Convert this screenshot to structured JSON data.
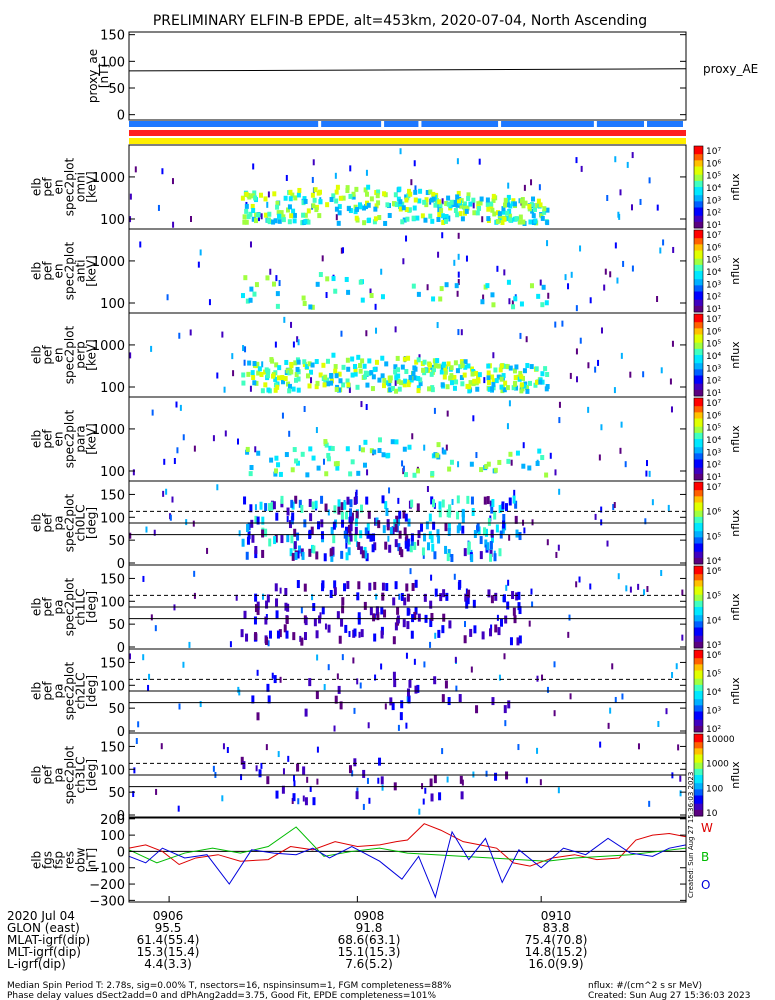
{
  "title": "PRELIMINARY ELFIN-B EPDE, alt=453km, 2020-07-04, North Ascending",
  "side_labels": {
    "proxy": "proxy_AE",
    "w": "W",
    "b": "B",
    "o": "O"
  },
  "created_stamp": "Created: Sun Aug 27 15:36:03 2023",
  "footer": {
    "left1": "Median Spin Period T: 2.78s, sig=0.00% T, nsectors=16, nspinsinsum=1, FGM completeness=88%",
    "left2": "Phase delay values dSect2add=0 and dPhAng2add=3.75, Good Fit, EPDE completeness=101%",
    "right1": "nflux: #/(cm^2 s sr MeV)",
    "right2": "Created: Sun Aug 27 15:36:03 2023"
  },
  "ephemeris": {
    "rows": [
      {
        "label": "2020 Jul 04",
        "values": [
          "0906",
          "0908",
          "0910"
        ]
      },
      {
        "label": "GLON (east)",
        "values": [
          "95.5",
          "91.8",
          "83.8"
        ]
      },
      {
        "label": "MLAT-igrf(dip)",
        "values": [
          "61.4(55.4)",
          "68.6(63.1)",
          "75.4(70.8)"
        ]
      },
      {
        "label": "MLT-igrf(dip)",
        "values": [
          "15.3(15.4)",
          "15.1(15.3)",
          "14.8(15.2)"
        ]
      },
      {
        "label": "L-igrf(dip)",
        "values": [
          "4.4(3.3)",
          "7.6(5.2)",
          "16.0(9.9)"
        ]
      }
    ]
  },
  "colors": {
    "bar_blue": "#1e78ff",
    "bar_red": "#ff1e1e",
    "bar_yellow": "#ffee00",
    "w_red": "#dd0000",
    "b_green": "#00bb00",
    "o_blue": "#0000dd"
  },
  "chart_data": [
    {
      "type": "line",
      "name": "proxy_ae",
      "ylabel": "proxy_ae [nT]",
      "yticks": [
        "150",
        "100",
        "50",
        "0"
      ],
      "ylim": [
        -10,
        155
      ],
      "x": [
        0,
        1
      ],
      "values": [
        82,
        86
      ]
    },
    {
      "type": "heatmap",
      "name": "elb pef en spec2plot omni [keV]",
      "ylabel_lines": [
        "elb",
        "pef",
        "en",
        "spec2plot",
        "omni",
        "[keV]"
      ],
      "yticks": [
        "1000",
        "100"
      ],
      "colorbar": {
        "label": "nflux",
        "ticks": [
          "10⁷",
          "10⁶",
          "10⁵",
          "10⁴",
          "10³",
          "10²",
          "10¹"
        ]
      }
    },
    {
      "type": "heatmap",
      "name": "elb pef en spec2plot anti [keV]",
      "ylabel_lines": [
        "elb",
        "pef",
        "en",
        "spec2plot",
        "anti",
        "[keV]"
      ],
      "yticks": [
        "1000",
        "100"
      ],
      "colorbar": {
        "label": "nflux",
        "ticks": [
          "10⁷",
          "10⁶",
          "10⁵",
          "10⁴",
          "10³",
          "10²",
          "10¹"
        ]
      }
    },
    {
      "type": "heatmap",
      "name": "elb pef en spec2plot perp [keV]",
      "ylabel_lines": [
        "elb",
        "pef",
        "en",
        "spec2plot",
        "perp",
        "[keV]"
      ],
      "yticks": [
        "1000",
        "100"
      ],
      "colorbar": {
        "label": "nflux",
        "ticks": [
          "10⁷",
          "10⁶",
          "10⁵",
          "10⁴",
          "10³",
          "10²",
          "10¹"
        ]
      }
    },
    {
      "type": "heatmap",
      "name": "elb pef en spec2plot para [keV]",
      "ylabel_lines": [
        "elb",
        "pef",
        "en",
        "spec2plot",
        "para",
        "[keV]"
      ],
      "yticks": [
        "1000",
        "100"
      ],
      "colorbar": {
        "label": "nflux",
        "ticks": [
          "10⁷",
          "10⁶",
          "10⁵",
          "10⁴",
          "10³",
          "10²",
          "10¹"
        ]
      }
    },
    {
      "type": "heatmap",
      "name": "elb pef pa spec2plot ch0LC [deg]",
      "ylabel_lines": [
        "elb",
        "pef",
        "pa",
        "spec2plot",
        "ch0LC",
        "[deg]"
      ],
      "yticks": [
        "150",
        "100",
        "50",
        "0"
      ],
      "colorbar": {
        "label": "nflux",
        "ticks": [
          "10⁷",
          "10⁶",
          "10⁵",
          "10⁴"
        ]
      }
    },
    {
      "type": "heatmap",
      "name": "elb pef pa spec2plot ch1LC [deg]",
      "ylabel_lines": [
        "elb",
        "pef",
        "pa",
        "spec2plot",
        "ch1LC",
        "[deg]"
      ],
      "yticks": [
        "150",
        "100",
        "50",
        "0"
      ],
      "colorbar": {
        "label": "nflux",
        "ticks": [
          "10⁶",
          "10⁵",
          "10⁴",
          "10³"
        ]
      }
    },
    {
      "type": "heatmap",
      "name": "elb pef pa spec2plot ch2LC [deg]",
      "ylabel_lines": [
        "elb",
        "pef",
        "pa",
        "spec2plot",
        "ch2LC",
        "[deg]"
      ],
      "yticks": [
        "150",
        "100",
        "50",
        "0"
      ],
      "colorbar": {
        "label": "nflux",
        "ticks": [
          "10⁶",
          "10⁵",
          "10⁴",
          "10³",
          "10²"
        ]
      }
    },
    {
      "type": "heatmap",
      "name": "elb pef pa spec2plot ch3LC [deg]",
      "ylabel_lines": [
        "elb",
        "pef",
        "pa",
        "spec2plot",
        "ch3LC",
        "[deg]"
      ],
      "yticks": [
        "150",
        "100",
        "50",
        "0"
      ],
      "colorbar": {
        "label": "nflux",
        "ticks": [
          "10000",
          "1000",
          "100",
          "10"
        ]
      }
    },
    {
      "type": "line",
      "name": "elb fgs fsp res obw [nT]",
      "ylabel_lines": [
        "elb",
        "fgs",
        "fsp",
        "res",
        "obw",
        "[nT]"
      ],
      "yticks": [
        "200",
        "100",
        "0",
        "−100",
        "−200",
        "−300"
      ],
      "ylim": [
        -310,
        205
      ],
      "series": [
        {
          "name": "W",
          "color": "#dd0000",
          "x": [
            0.0,
            0.03,
            0.06,
            0.09,
            0.12,
            0.16,
            0.2,
            0.25,
            0.29,
            0.33,
            0.37,
            0.41,
            0.45,
            0.48,
            0.5,
            0.53,
            0.56,
            0.6,
            0.63,
            0.66,
            0.69,
            0.72,
            0.76,
            0.8,
            0.84,
            0.88,
            0.91,
            0.94,
            0.97,
            1.0
          ],
          "y": [
            20,
            40,
            0,
            -80,
            -40,
            -20,
            -60,
            -50,
            30,
            10,
            60,
            30,
            40,
            60,
            70,
            170,
            130,
            60,
            40,
            20,
            -70,
            -90,
            -40,
            -20,
            -50,
            -40,
            70,
            100,
            110,
            90
          ]
        },
        {
          "name": "B",
          "color": "#00bb00",
          "x": [
            0.0,
            0.05,
            0.1,
            0.15,
            0.2,
            0.25,
            0.3,
            0.35,
            0.4,
            0.45,
            0.5,
            0.55,
            0.6,
            0.65,
            0.7,
            0.75,
            0.8,
            0.85,
            0.9,
            0.95,
            1.0
          ],
          "y": [
            10,
            -70,
            -10,
            20,
            -10,
            30,
            150,
            -30,
            0,
            20,
            -10,
            -20,
            -30,
            -40,
            -50,
            -60,
            -40,
            -30,
            -20,
            0,
            20
          ]
        },
        {
          "name": "O",
          "color": "#0000dd",
          "x": [
            0.0,
            0.03,
            0.06,
            0.1,
            0.14,
            0.18,
            0.22,
            0.26,
            0.3,
            0.33,
            0.36,
            0.4,
            0.45,
            0.49,
            0.52,
            0.55,
            0.58,
            0.61,
            0.64,
            0.67,
            0.7,
            0.74,
            0.78,
            0.82,
            0.86,
            0.9,
            0.94,
            0.97,
            1.0
          ],
          "y": [
            -30,
            -70,
            20,
            -40,
            -20,
            -200,
            10,
            -10,
            -20,
            20,
            -40,
            30,
            -60,
            -170,
            -30,
            -280,
            120,
            -50,
            80,
            -190,
            10,
            -100,
            20,
            -20,
            80,
            -10,
            -30,
            20,
            40
          ]
        }
      ]
    }
  ],
  "timeline_ticks": [
    "0906",
    "0908",
    "0910"
  ]
}
